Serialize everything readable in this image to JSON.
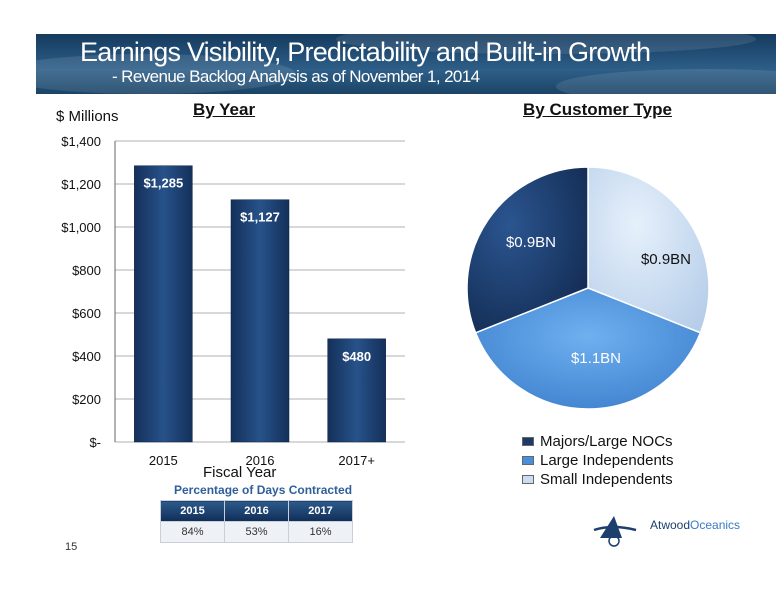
{
  "header": {
    "title": "Earnings Visibility, Predictability and Built-in Growth",
    "subtitle": "- Revenue Backlog Analysis as of November 1, 2014"
  },
  "sections": {
    "by_year": "By Year",
    "by_customer": "By Customer Type"
  },
  "unit_label": "$ Millions",
  "chart_data": [
    {
      "type": "bar",
      "categories": [
        "2015",
        "2016",
        "2017+"
      ],
      "values": [
        1285,
        1127,
        480
      ],
      "data_labels": [
        "$1,285",
        "$1,127",
        "$480"
      ],
      "xlabel": "Fiscal Year",
      "ylabel": "$ Millions",
      "ylim": [
        0,
        1400
      ],
      "yticks": [
        0,
        200,
        400,
        600,
        800,
        1000,
        1200,
        1400
      ],
      "ytick_labels": [
        "$-",
        "$200",
        "$400",
        "$600",
        "$800",
        "$1,000",
        "$1,200",
        "$1,400"
      ],
      "grid": true,
      "color": "#1c3e6e"
    },
    {
      "type": "pie",
      "labels": [
        "Majors/Large NOCs",
        "Large Independents",
        "Small Independents"
      ],
      "values": [
        0.9,
        1.1,
        0.9
      ],
      "data_labels": [
        "$0.9BN",
        "$1.1BN",
        "$0.9BN"
      ],
      "colors": [
        "#1c3a66",
        "#4a8fdb",
        "#c9dcf2"
      ],
      "legend": "bottom"
    }
  ],
  "pct_table": {
    "title": "Percentage of Days Contracted",
    "headers": [
      "2015",
      "2016",
      "2017"
    ],
    "values": [
      "84%",
      "53%",
      "16%"
    ]
  },
  "page_number": "15",
  "logo": {
    "name_part1": "Atwood",
    "name_part2": "Oceanics"
  }
}
